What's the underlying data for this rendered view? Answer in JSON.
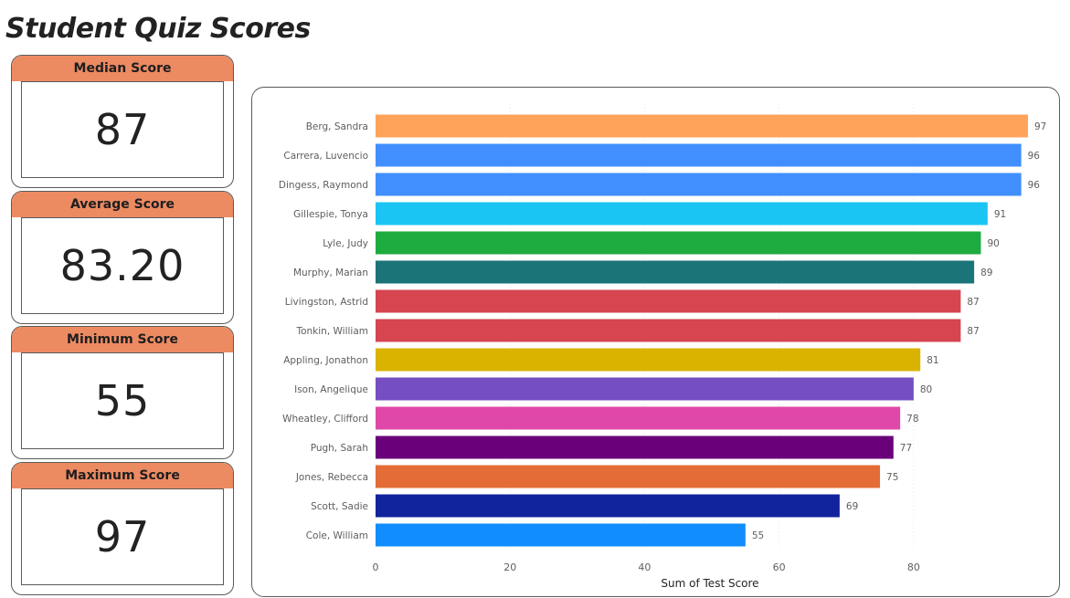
{
  "page": {
    "title": "Student Quiz Scores"
  },
  "cards": [
    {
      "label": "Median Score",
      "value": "87"
    },
    {
      "label": "Average Score",
      "value": "83.20"
    },
    {
      "label": "Minimum Score",
      "value": "55"
    },
    {
      "label": "Maximum Score",
      "value": "97"
    }
  ],
  "colors": {
    "card_header": "#ec8a62",
    "gridline": "#e6e6e6"
  },
  "chart_data": {
    "type": "bar",
    "orientation": "horizontal",
    "title": "",
    "xlabel": "Sum of Test Score",
    "ylabel": "",
    "xlim": [
      0,
      97
    ],
    "xticks": [
      0,
      20,
      40,
      60,
      80
    ],
    "grid": true,
    "categories": [
      "Berg, Sandra",
      "Carrera, Luvencio",
      "Dingess, Raymond",
      "Gillespie, Tonya",
      "Lyle, Judy",
      "Murphy, Marian",
      "Livingston, Astrid",
      "Tonkin, William",
      "Appling, Jonathon",
      "Ison, Angelique",
      "Wheatley, Clifford",
      "Pugh, Sarah",
      "Jones, Rebecca",
      "Scott, Sadie",
      "Cole, William"
    ],
    "values": [
      97,
      96,
      96,
      91,
      90,
      89,
      87,
      87,
      81,
      80,
      78,
      77,
      75,
      69,
      55
    ],
    "bar_colors": [
      "#ffa35a",
      "#418fff",
      "#418fff",
      "#1ac5f4",
      "#1eab40",
      "#1b7478",
      "#d64550",
      "#d64550",
      "#d9b300",
      "#744ec2",
      "#df48a8",
      "#6b007b",
      "#e46c37",
      "#12239e",
      "#118dff"
    ]
  }
}
